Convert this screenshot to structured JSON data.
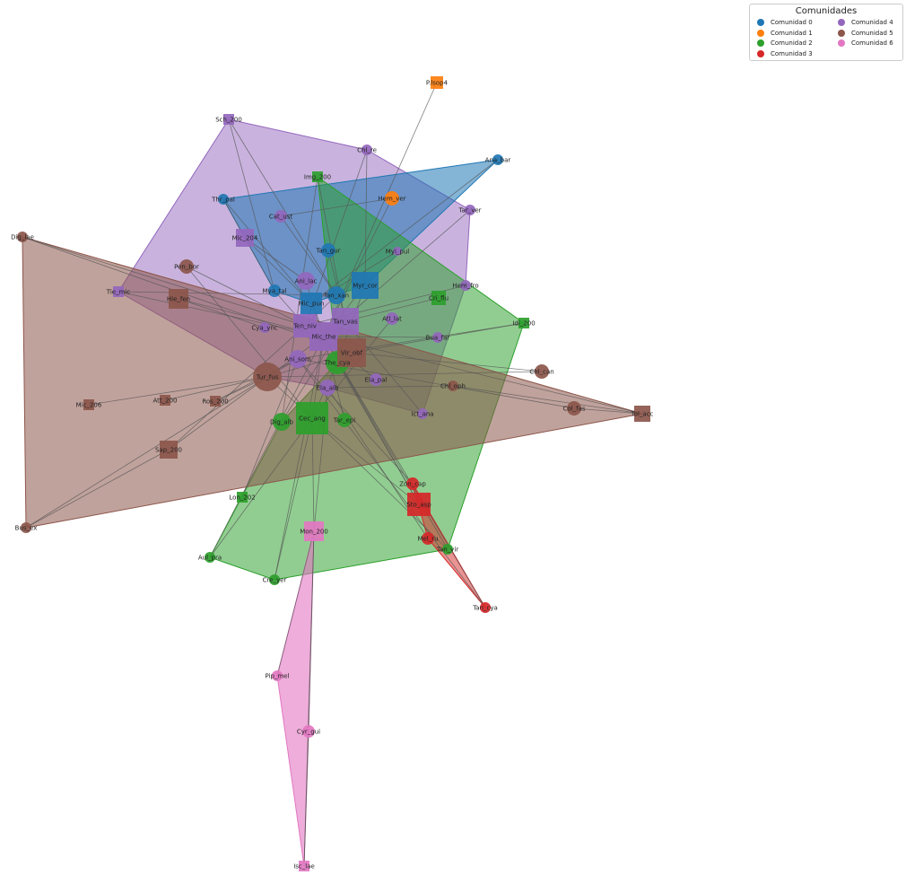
{
  "legend": {
    "title": "Comunidades",
    "communities": [
      {
        "label": "Comunidad 0",
        "color": "#1f77b4"
      },
      {
        "label": "Comunidad 1",
        "color": "#ff7f0e"
      },
      {
        "label": "Comunidad 2",
        "color": "#2ca02c"
      },
      {
        "label": "Comunidad 3",
        "color": "#d62728"
      },
      {
        "label": "Comunidad 4",
        "color": "#9467bd"
      },
      {
        "label": "Comunidad 5",
        "color": "#8c564b"
      },
      {
        "label": "Comunidad 6",
        "color": "#e377c2"
      }
    ]
  },
  "nodes": [
    {
      "label": "P.lsop4",
      "community": 1,
      "shape": "square"
    },
    {
      "label": "Hem_ver",
      "community": 1,
      "shape": "circle"
    },
    {
      "label": "Ana_bar",
      "community": 0,
      "shape": "circle"
    },
    {
      "label": "Thr_pal",
      "community": 0,
      "shape": "circle"
    },
    {
      "label": "Tan_gur",
      "community": 0,
      "shape": "circle"
    },
    {
      "label": "Mya_tal",
      "community": 0,
      "shape": "circle"
    },
    {
      "label": "Myr_cor",
      "community": 0,
      "shape": "square"
    },
    {
      "label": "Mic_pun",
      "community": 0,
      "shape": "square"
    },
    {
      "label": "Tan_xan",
      "community": 0,
      "shape": "circle"
    },
    {
      "label": "Sch_200",
      "community": 4,
      "shape": "square"
    },
    {
      "label": "Chl_re",
      "community": 4,
      "shape": "circle"
    },
    {
      "label": "Cat_ust",
      "community": 4,
      "shape": "circle"
    },
    {
      "label": "Mic_204",
      "community": 4,
      "shape": "square"
    },
    {
      "label": "Tie_mic",
      "community": 4,
      "shape": "square"
    },
    {
      "label": "Tar_ver",
      "community": 4,
      "shape": "circle"
    },
    {
      "label": "Myi_pul",
      "community": 4,
      "shape": "circle"
    },
    {
      "label": "Ani_lac",
      "community": 4,
      "shape": "circle"
    },
    {
      "label": "Hem_fro",
      "community": 4,
      "shape": "circle"
    },
    {
      "label": "Atl_lat",
      "community": 4,
      "shape": "circle"
    },
    {
      "label": "Cya_ync",
      "community": 4,
      "shape": "circle"
    },
    {
      "label": "Ten_niv",
      "community": 4,
      "shape": "square"
    },
    {
      "label": "Tan_vas",
      "community": 4,
      "shape": "square"
    },
    {
      "label": "Mic_the",
      "community": 4,
      "shape": "square"
    },
    {
      "label": "Ani_som",
      "community": 4,
      "shape": "circle"
    },
    {
      "label": "Ela_alb",
      "community": 4,
      "shape": "circle"
    },
    {
      "label": "Ela_pal",
      "community": 4,
      "shape": "circle"
    },
    {
      "label": "Ict_ana",
      "community": 4,
      "shape": "circle"
    },
    {
      "label": "Bua_far",
      "community": 4,
      "shape": "circle"
    },
    {
      "label": "Img_200",
      "community": 2,
      "shape": "square"
    },
    {
      "label": "Cri_flu",
      "community": 2,
      "shape": "square"
    },
    {
      "label": "Idi_200",
      "community": 2,
      "shape": "square"
    },
    {
      "label": "The_cya",
      "community": 2,
      "shape": "circle"
    },
    {
      "label": "Dig_alb",
      "community": 2,
      "shape": "circle"
    },
    {
      "label": "Cec_ang",
      "community": 2,
      "shape": "square"
    },
    {
      "label": "Tar_epi",
      "community": 2,
      "shape": "circle"
    },
    {
      "label": "Lon_202",
      "community": 2,
      "shape": "square"
    },
    {
      "label": "Aul_pra",
      "community": 2,
      "shape": "circle"
    },
    {
      "label": "Cre_yer",
      "community": 2,
      "shape": "circle"
    },
    {
      "label": "Tan_vir",
      "community": 2,
      "shape": "circle"
    },
    {
      "label": "Dig_lae",
      "community": 5,
      "shape": "circle"
    },
    {
      "label": "Pen_bor",
      "community": 5,
      "shape": "circle"
    },
    {
      "label": "Hie_fen",
      "community": 5,
      "shape": "square"
    },
    {
      "label": "Vir_obf",
      "community": 5,
      "shape": "square"
    },
    {
      "label": "Tur_fus",
      "community": 5,
      "shape": "circle"
    },
    {
      "label": "Chl_can",
      "community": 5,
      "shape": "circle"
    },
    {
      "label": "Chl_oph",
      "community": 5,
      "shape": "circle"
    },
    {
      "label": "Col_fas",
      "community": 5,
      "shape": "circle"
    },
    {
      "label": "Tol_acc",
      "community": 5,
      "shape": "square"
    },
    {
      "label": "Mic_206",
      "community": 5,
      "shape": "square"
    },
    {
      "label": "Att_200",
      "community": 5,
      "shape": "square"
    },
    {
      "label": "Ros_200",
      "community": 5,
      "shape": "square"
    },
    {
      "label": "Sap_200",
      "community": 5,
      "shape": "square"
    },
    {
      "label": "Bus_ex",
      "community": 5,
      "shape": "circle"
    },
    {
      "label": "Zon_cap",
      "community": 3,
      "shape": "circle"
    },
    {
      "label": "Sto_asp",
      "community": 3,
      "shape": "square"
    },
    {
      "label": "Mel_ru",
      "community": 3,
      "shape": "circle"
    },
    {
      "label": "Tan_cya",
      "community": 3,
      "shape": "circle"
    },
    {
      "label": "Mon_200",
      "community": 6,
      "shape": "square"
    },
    {
      "label": "Pip_mel",
      "community": 6,
      "shape": "circle"
    },
    {
      "label": "Cyr_gui",
      "community": 6,
      "shape": "circle"
    },
    {
      "label": "Isc_lae",
      "community": 6,
      "shape": "square"
    }
  ],
  "edges": [
    [
      "P.lsop4",
      "Mic_the"
    ],
    [
      "Hem_ver",
      "Cat_ust"
    ],
    [
      "Ana_bar",
      "Mic_pun"
    ],
    [
      "Sch_200",
      "Mya_tal"
    ],
    [
      "Sch_200",
      "Tan_xan"
    ],
    [
      "Chl_re",
      "Myr_cor"
    ],
    [
      "Chl_re",
      "Ten_niv"
    ],
    [
      "Img_200",
      "Tan_vas"
    ],
    [
      "Img_200",
      "Dig_alb"
    ],
    [
      "Thr_pal",
      "Mic_pun"
    ],
    [
      "Thr_pal",
      "Mya_tal"
    ],
    [
      "Cat_ust",
      "Tan_xan"
    ],
    [
      "Tar_ver",
      "Mic_the"
    ],
    [
      "Mic_204",
      "Mic_pun"
    ],
    [
      "Mic_204",
      "Ani_lac"
    ],
    [
      "Dig_lae",
      "Ten_niv"
    ],
    [
      "Dig_lae",
      "Vir_obf"
    ],
    [
      "Pen_bor",
      "Ten_niv"
    ],
    [
      "Pen_bor",
      "Cec_ang"
    ],
    [
      "Tan_gur",
      "Tan_vas"
    ],
    [
      "Myi_pul",
      "Mic_pun"
    ],
    [
      "Tie_mic",
      "Tan_xan"
    ],
    [
      "Tie_mic",
      "Mic_the"
    ],
    [
      "Hie_fen",
      "Cya_ync"
    ],
    [
      "Hie_fen",
      "Mic_the"
    ],
    [
      "Mya_tal",
      "Ten_niv"
    ],
    [
      "Ani_lac",
      "Mic_the"
    ],
    [
      "Myr_cor",
      "Mic_the"
    ],
    [
      "Myr_cor",
      "The_cya"
    ],
    [
      "Hem_fro",
      "Ten_niv"
    ],
    [
      "Cri_flu",
      "Tan_vas"
    ],
    [
      "Idi_200",
      "Ani_som"
    ],
    [
      "Idi_200",
      "Vir_obf"
    ],
    [
      "Atl_lat",
      "Cec_ang"
    ],
    [
      "Bua_far",
      "Mic_the"
    ],
    [
      "Chl_can",
      "Vir_obf"
    ],
    [
      "Chl_can",
      "Tur_fus"
    ],
    [
      "Tol_acc",
      "Mic_the"
    ],
    [
      "Tol_acc",
      "Chl_oph"
    ],
    [
      "Tol_acc",
      "Col_fas"
    ],
    [
      "Col_fas",
      "Ani_som"
    ],
    [
      "Chl_oph",
      "Ela_alb"
    ],
    [
      "Ict_ana",
      "Tan_vas"
    ],
    [
      "Ela_pal",
      "Mic_the"
    ],
    [
      "Tur_fus",
      "Mic_the"
    ],
    [
      "Tur_fus",
      "Ani_som"
    ],
    [
      "Tur_fus",
      "Cec_ang"
    ],
    [
      "Tur_fus",
      "Vir_obf"
    ],
    [
      "Mic_206",
      "Tur_fus"
    ],
    [
      "Att_200",
      "Tur_fus"
    ],
    [
      "Ros_200",
      "Tur_fus"
    ],
    [
      "Ros_200",
      "Ani_som"
    ],
    [
      "Sap_200",
      "Tur_fus"
    ],
    [
      "Sap_200",
      "Ten_niv"
    ],
    [
      "Bus_ex",
      "Sap_200"
    ],
    [
      "Bus_ex",
      "Tur_fus"
    ],
    [
      "Dig_alb",
      "Tan_vas"
    ],
    [
      "Cec_ang",
      "Mic_the"
    ],
    [
      "Cec_ang",
      "The_cya"
    ],
    [
      "Tar_epi",
      "Mic_the"
    ],
    [
      "Lon_202",
      "Ani_som"
    ],
    [
      "Aul_pra",
      "Mic_the"
    ],
    [
      "Aul_pra",
      "Cec_ang"
    ],
    [
      "Cre_yer",
      "Mic_the"
    ],
    [
      "Cre_yer",
      "Cec_ang"
    ],
    [
      "Mon_200",
      "Cec_ang"
    ],
    [
      "Mon_200",
      "Ela_alb"
    ],
    [
      "Zon_cap",
      "Ani_som"
    ],
    [
      "Sto_asp",
      "Mic_the"
    ],
    [
      "Sto_asp",
      "Cec_ang"
    ],
    [
      "Sto_asp",
      "The_cya"
    ],
    [
      "Mel_ru",
      "Ela_alb"
    ],
    [
      "Tan_vir",
      "Mic_the"
    ],
    [
      "Tan_vir",
      "Cec_ang"
    ],
    [
      "Tan_cya",
      "Mic_the"
    ],
    [
      "Tan_cya",
      "Ani_som"
    ],
    [
      "Pip_mel",
      "Mon_200"
    ],
    [
      "Cyr_gui",
      "Mon_200"
    ],
    [
      "Isc_lae",
      "Cyr_gui"
    ],
    [
      "Isc_lae",
      "Mon_200"
    ],
    [
      "Mic_pun",
      "Mic_the"
    ],
    [
      "Tan_xan",
      "Ten_niv"
    ],
    [
      "Hem_ver",
      "Mic_the"
    ]
  ]
}
